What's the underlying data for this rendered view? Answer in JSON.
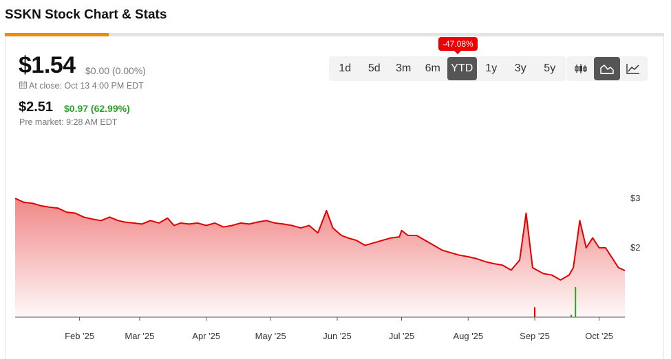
{
  "page": {
    "title": "SSKN Stock Chart & Stats"
  },
  "quote": {
    "price": "$1.54",
    "change": "$0.00 (0.00%)",
    "close_label": "At close: Oct 13 4:00 PM EDT",
    "pre_price": "$2.51",
    "pre_change": "$0.97 (62.99%)",
    "pre_time": "Pre market: 9:28 AM EDT"
  },
  "range": {
    "badge": "-47.08%",
    "buttons": [
      "1d",
      "5d",
      "3m",
      "6m",
      "YTD",
      "1y",
      "3y",
      "5y"
    ],
    "active": "YTD"
  },
  "chart_types": [
    {
      "icon": "candlestick-icon",
      "active": false
    },
    {
      "icon": "mountain-chart-icon",
      "active": true
    },
    {
      "icon": "line-chart-icon",
      "active": false
    }
  ],
  "colors": {
    "line": "#e10000",
    "fill": "#f08080",
    "accent": "#f08a00",
    "volume_down": "#e10000",
    "volume_up": "#2aa12a"
  },
  "chart_data": {
    "type": "area",
    "title": "",
    "xlabel": "",
    "ylabel": "",
    "x_ticks": [
      "Feb '25",
      "Mar '25",
      "Apr '25",
      "May '25",
      "Jun '25",
      "Jul '25",
      "Aug '25",
      "Sep '25",
      "Oct '25"
    ],
    "y_ticks": [
      "$2",
      "$3"
    ],
    "ylim": [
      0.6,
      3.4
    ],
    "x_range": [
      "2025-01-02",
      "2025-10-13"
    ],
    "series": [
      {
        "x": [
          "2025-01-02",
          "2025-01-06",
          "2025-01-10",
          "2025-01-14",
          "2025-01-18",
          "2025-01-22",
          "2025-01-26",
          "2025-01-30",
          "2025-02-03",
          "2025-02-07",
          "2025-02-11",
          "2025-02-15",
          "2025-02-19",
          "2025-02-22",
          "2025-02-26",
          "2025-03-02",
          "2025-03-06",
          "2025-03-10",
          "2025-03-14",
          "2025-03-17",
          "2025-03-20",
          "2025-03-24",
          "2025-03-28",
          "2025-04-01",
          "2025-04-05",
          "2025-04-09",
          "2025-04-13",
          "2025-04-17",
          "2025-04-21",
          "2025-04-25",
          "2025-04-29",
          "2025-05-03",
          "2025-05-07",
          "2025-05-11",
          "2025-05-15",
          "2025-05-19",
          "2025-05-23",
          "2025-05-27",
          "2025-05-30",
          "2025-06-03",
          "2025-06-06",
          "2025-06-10",
          "2025-06-14",
          "2025-06-18",
          "2025-06-22",
          "2025-06-26",
          "2025-06-30",
          "2025-07-01",
          "2025-07-04",
          "2025-07-08",
          "2025-07-12",
          "2025-07-16",
          "2025-07-20",
          "2025-07-24",
          "2025-07-28",
          "2025-08-01",
          "2025-08-05",
          "2025-08-09",
          "2025-08-13",
          "2025-08-17",
          "2025-08-21",
          "2025-08-25",
          "2025-08-28",
          "2025-08-31",
          "2025-09-02",
          "2025-09-05",
          "2025-09-09",
          "2025-09-13",
          "2025-09-17",
          "2025-09-19",
          "2025-09-22",
          "2025-09-25",
          "2025-09-28",
          "2025-10-01",
          "2025-10-04",
          "2025-10-07",
          "2025-10-10",
          "2025-10-13"
        ],
        "y": [
          3.0,
          2.92,
          2.9,
          2.85,
          2.82,
          2.8,
          2.72,
          2.7,
          2.62,
          2.58,
          2.55,
          2.62,
          2.55,
          2.52,
          2.5,
          2.48,
          2.55,
          2.5,
          2.6,
          2.45,
          2.5,
          2.48,
          2.5,
          2.45,
          2.5,
          2.42,
          2.45,
          2.5,
          2.48,
          2.52,
          2.55,
          2.5,
          2.48,
          2.45,
          2.4,
          2.45,
          2.3,
          2.75,
          2.4,
          2.25,
          2.2,
          2.15,
          2.05,
          2.1,
          2.15,
          2.2,
          2.22,
          2.35,
          2.25,
          2.25,
          2.15,
          2.05,
          1.95,
          1.9,
          1.85,
          1.82,
          1.78,
          1.72,
          1.68,
          1.65,
          1.55,
          1.75,
          2.7,
          1.6,
          1.55,
          1.48,
          1.45,
          1.35,
          1.45,
          1.6,
          2.55,
          2.0,
          2.2,
          2.0,
          2.0,
          1.8,
          1.6,
          1.54
        ]
      }
    ],
    "volume": [
      {
        "x": "2025-09-01",
        "direction": "down",
        "relative": 0.33
      },
      {
        "x": "2025-09-18",
        "direction": "up",
        "relative": 0.08
      },
      {
        "x": "2025-09-20",
        "direction": "up",
        "relative": 1.0
      }
    ],
    "grid": false,
    "legend": "none"
  }
}
